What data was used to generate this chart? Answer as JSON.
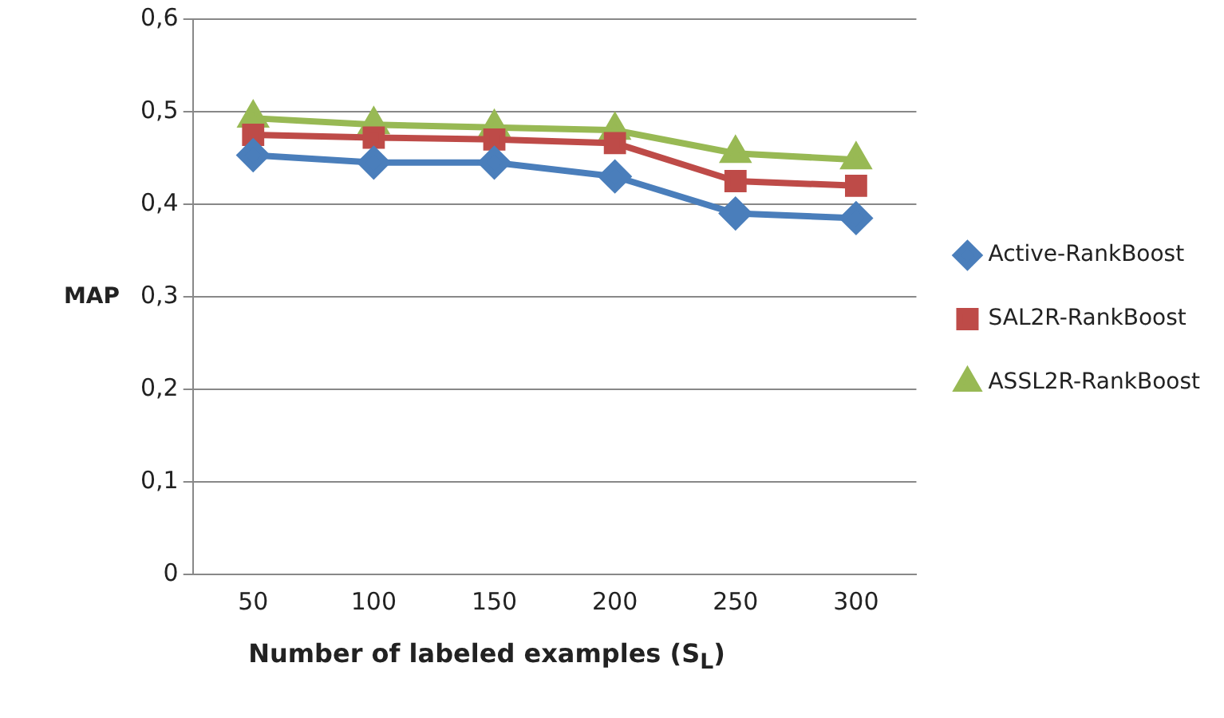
{
  "chart_data": {
    "type": "line",
    "xlabel": "Number of labeled examples (S$_{L}$)",
    "ylabel": "MAP",
    "categories": [
      "50",
      "100",
      "150",
      "200",
      "250",
      "300"
    ],
    "series": [
      {
        "name": "Active-RankBoost",
        "color": "#4a7ebb",
        "marker": "diamond",
        "values": [
          0.453,
          0.445,
          0.445,
          0.43,
          0.39,
          0.385
        ]
      },
      {
        "name": "SAL2R-RankBoost",
        "color": "#be4b48",
        "marker": "square",
        "values": [
          0.475,
          0.472,
          0.47,
          0.466,
          0.425,
          0.42
        ]
      },
      {
        "name": "ASSL2R-RankBoost",
        "color": "#98b954",
        "marker": "triangle",
        "values": [
          0.493,
          0.486,
          0.483,
          0.48,
          0.455,
          0.448
        ]
      }
    ],
    "ylim": [
      0,
      0.6
    ],
    "yticks": [
      {
        "value": 0,
        "label": "0"
      },
      {
        "value": 0.1,
        "label": "0,1"
      },
      {
        "value": 0.2,
        "label": "0,2"
      },
      {
        "value": 0.3,
        "label": "0,3"
      },
      {
        "value": 0.4,
        "label": "0,4"
      },
      {
        "value": 0.5,
        "label": "0,5"
      },
      {
        "value": 0.6,
        "label": "0,6"
      }
    ],
    "grid": "y",
    "legend": "right"
  }
}
